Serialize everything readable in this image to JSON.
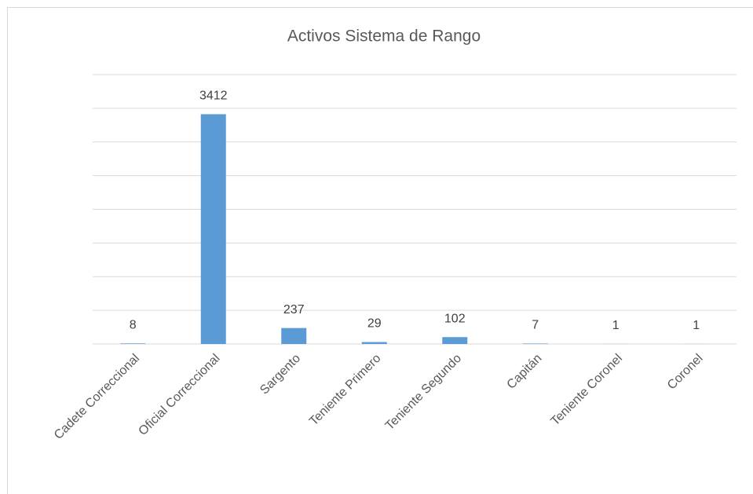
{
  "chart_data": {
    "type": "bar",
    "title": "Activos Sistema de Rango",
    "categories": [
      "Cadete Correccional",
      "Oficial Correccional",
      "Sargento",
      "Teniente Primero",
      "Teniente Segundo",
      "Capitán",
      "Teniente Coronel",
      "Coronel"
    ],
    "values": [
      8,
      3412,
      237,
      29,
      102,
      7,
      1,
      1
    ],
    "color": "#5b9bd5",
    "ylim": [
      0,
      4000
    ],
    "yticks": [
      0,
      500,
      1000,
      1500,
      2000,
      2500,
      3000,
      3500,
      4000
    ],
    "grid": true
  }
}
